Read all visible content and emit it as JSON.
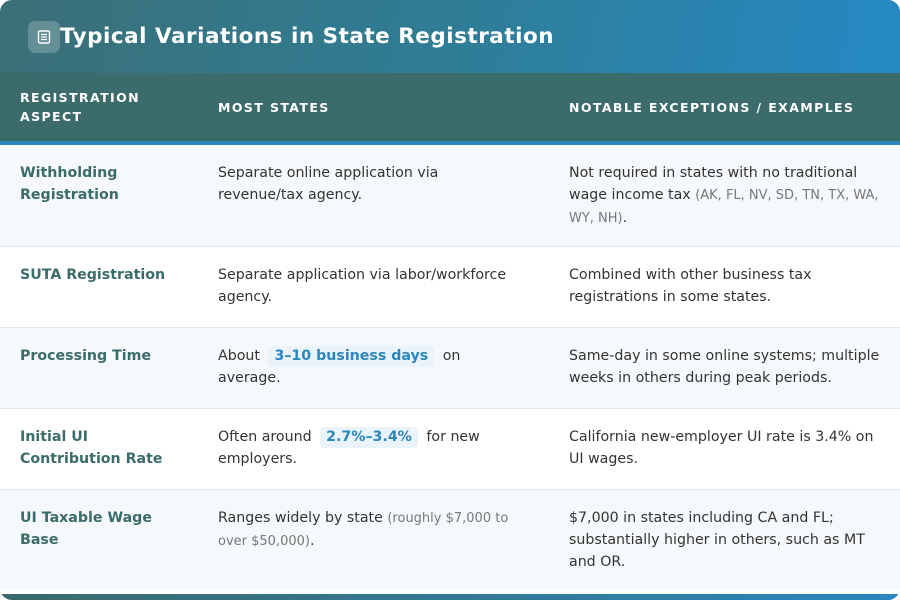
{
  "header": {
    "title": "Typical Variations in State Registration",
    "icon": "document-icon"
  },
  "table": {
    "columns": [
      "REGISTRATION ASPECT",
      "MOST STATES",
      "NOTABLE EXCEPTIONS / EXAMPLES"
    ],
    "rows": [
      {
        "aspect": "Withholding Registration",
        "most": {
          "text": "Separate online application via revenue/tax agency."
        },
        "exceptions": {
          "text": "Not required in states with no traditional wage income tax ",
          "small": "(AK, FL, NV, SD, TN, TX, WA, WY, NH)",
          "after": "."
        }
      },
      {
        "aspect": "SUTA Registration",
        "most": {
          "text": "Separate application via labor/workforce agency."
        },
        "exceptions": {
          "text": "Combined with other business tax registrations in some states."
        }
      },
      {
        "aspect": "Processing Time",
        "most": {
          "before": "About",
          "highlight": "3–10 business days",
          "after": "on average."
        },
        "exceptions": {
          "text": "Same-day in some online systems; multiple weeks in others during peak periods."
        }
      },
      {
        "aspect": "Initial UI Contribution Rate",
        "most": {
          "before": "Often around",
          "highlight": "2.7%–3.4%",
          "after": "for new employers."
        },
        "exceptions": {
          "text": "California new-employer UI rate is 3.4% on UI wages."
        }
      },
      {
        "aspect": "UI Taxable Wage Base",
        "most": {
          "text": "Ranges widely by state ",
          "small": "(roughly $7,000 to over $50,000)",
          "after": "."
        },
        "exceptions": {
          "text": "$7,000 in states including CA and FL; substantially higher in others, such as MT and OR."
        }
      }
    ]
  },
  "colors": {
    "header_start": "#3b6f76",
    "header_end": "#2589c4",
    "table_header": "#3b6b6b",
    "accent": "#2a86bd"
  }
}
